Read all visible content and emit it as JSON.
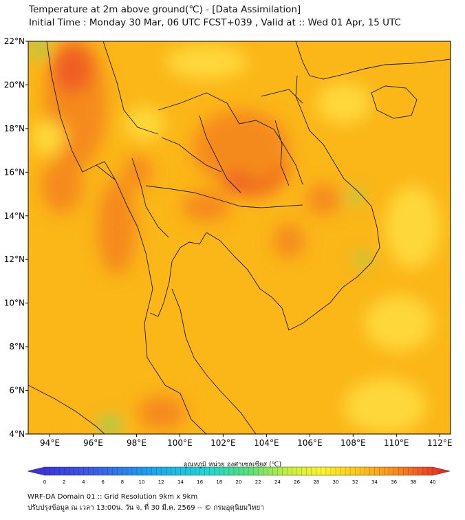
{
  "title": "Temperature at 2m above ground(℃) - [Data Assimilation]",
  "subtitle": "Initial Time : Monday 30 Mar, 06 UTC FCST+039 , Valid at :: Wed 01 Apr, 15 UTC",
  "map": {
    "lat_ticks": [
      "22°N",
      "20°N",
      "18°N",
      "16°N",
      "14°N",
      "12°N",
      "10°N",
      "8°N",
      "6°N",
      "4°N"
    ],
    "lon_ticks": [
      "94°E",
      "96°E",
      "98°E",
      "100°E",
      "102°E",
      "104°E",
      "106°E",
      "108°E",
      "110°E",
      "112°E"
    ],
    "lat_range": [
      4,
      22
    ],
    "lon_range": [
      93,
      112.5
    ],
    "field_colors": {
      "base": "#fbb618",
      "warm": "#f58a1c",
      "hot": "#ef5f24",
      "cool": "#fed83a",
      "cold": "#7fd86a"
    }
  },
  "colorbar": {
    "label": "อุณหภูมิ หน่วย องศาเซลเซียส (℃)",
    "ticks": [
      "0",
      "2",
      "4",
      "6",
      "8",
      "10",
      "12",
      "14",
      "16",
      "18",
      "20",
      "22",
      "24",
      "26",
      "28",
      "30",
      "32",
      "34",
      "36",
      "38",
      "40"
    ],
    "range": [
      0,
      40
    ]
  },
  "footer": {
    "line1": "WRF-DA Domain 01 :: Grid Resolution 9km x 9km",
    "line2": "ปรับปรุงข้อมูล ณ เวลา 13:00น. วัน จ. ที่ 30 มี.ค. 2569 -- © กรมอุตุนิยมวิทยา"
  }
}
